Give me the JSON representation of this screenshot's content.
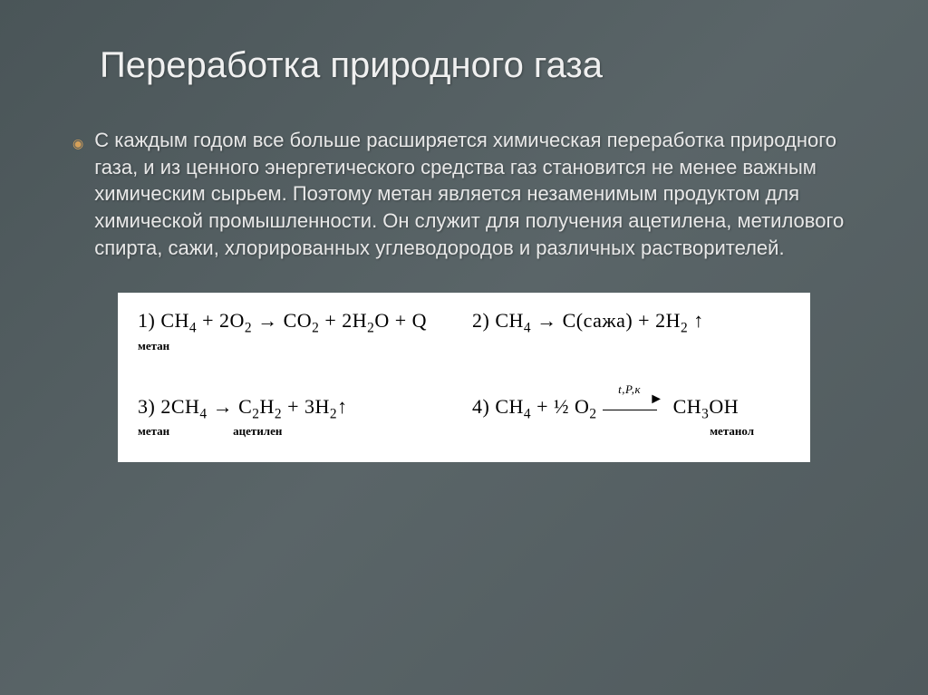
{
  "slide": {
    "title": "Переработка природного газа",
    "body": "С каждым годом все больше расширяется химическая переработка природного газа, и из ценного энергетического средства газ становится не менее важным химическим сырьем. Поэтому метан является незаменимым продуктом для химической промышленности. Он служит для получения ацетилена, метилового спирта, сажи, хлорированных углеводородов и различных растворителей."
  },
  "equations": {
    "eq1": {
      "num": "1)",
      "lhs": "CH",
      "lhs_sub": "4",
      "plus": " + 2O",
      "plus_sub": "2",
      "arrow": " → ",
      "rhs1": "CO",
      "rhs1_sub": "2",
      "rhs2": " + 2H",
      "rhs2_sub": "2",
      "rhs3": "O + Q",
      "label": "метан"
    },
    "eq2": {
      "num": "2)",
      "lhs": "CH",
      "lhs_sub": "4",
      "arrow": " → ",
      "rhs1": "C(сажа) + 2H",
      "rhs1_sub": "2",
      "up": " ↑"
    },
    "eq3": {
      "num": "3)",
      "lhs": "2CH",
      "lhs_sub": "4",
      "arrow": " → ",
      "rhs1": "C",
      "rhs1_sub": "2",
      "rhs2": "H",
      "rhs2_sub": "2",
      "rhs3": " + 3H",
      "rhs3_sub": "2",
      "up": "↑",
      "label1": "метан",
      "label2": "ацетилен"
    },
    "eq4": {
      "num": "4)",
      "lhs": "CH",
      "lhs_sub": "4",
      "plus": " + ½ O",
      "plus_sub": "2",
      "arrow_over": "t,P,к",
      "rhs": "CH",
      "rhs_sub": "3",
      "rhs2": "OH",
      "label": "метанол"
    }
  },
  "style": {
    "bg_gradient_from": "#4a5558",
    "bg_gradient_to": "#505a5d",
    "title_fontsize": 40,
    "body_fontsize": 22,
    "text_color": "#e8e8e8",
    "bullet_color": "#d4a05a",
    "equation_bg": "#ffffff",
    "equation_text": "#000000",
    "eq_fontsize": 22,
    "eq_label_fontsize": 13
  }
}
